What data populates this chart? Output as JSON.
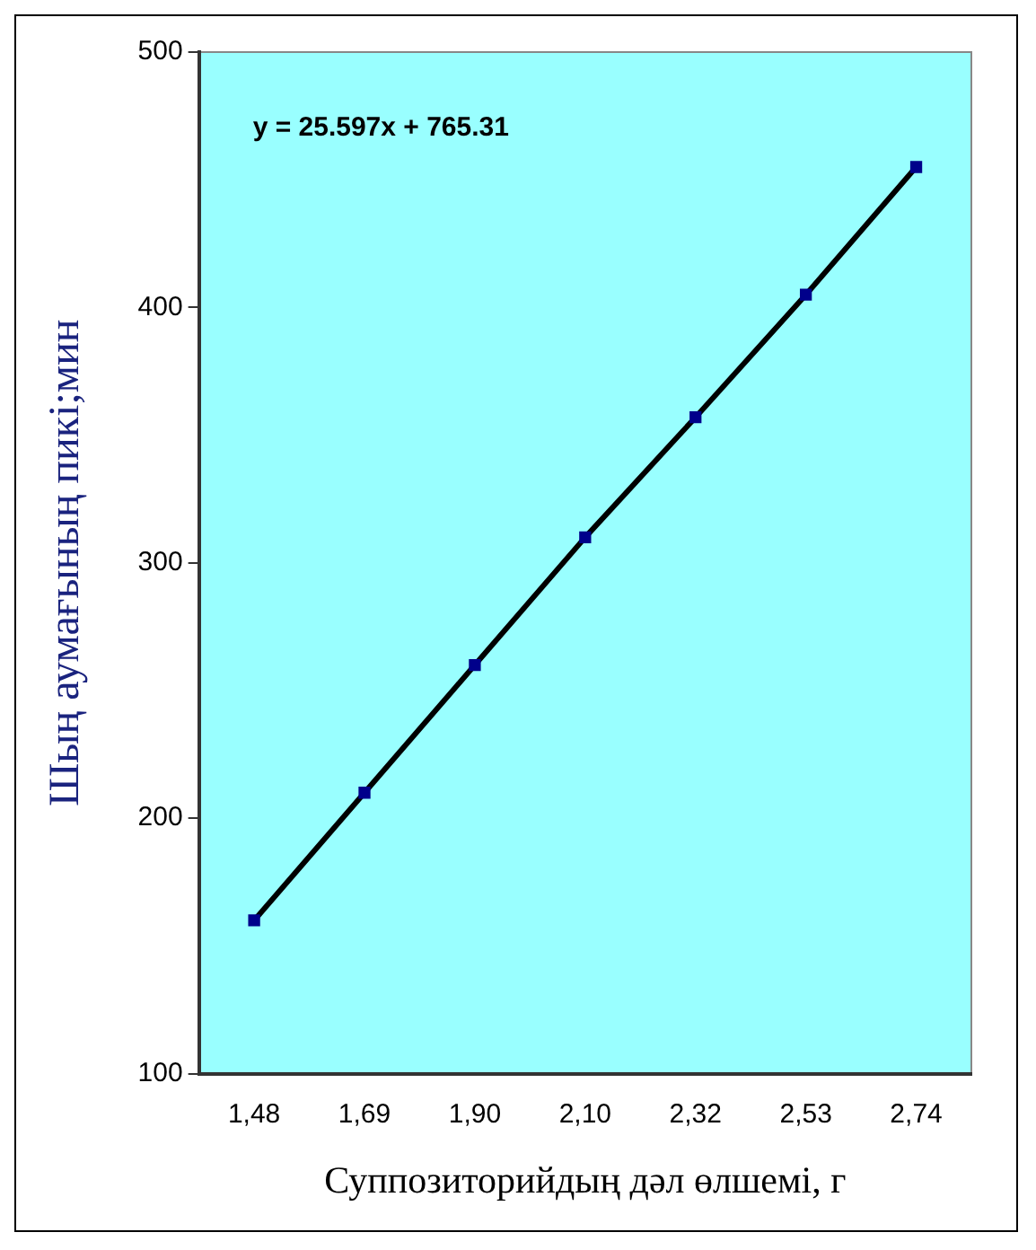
{
  "chart_data": {
    "type": "scatter",
    "xlabel": "Суппозиторийдың дәл өлшемі, г",
    "ylabel": "Шың аумағының пикі;мин",
    "categories": [
      "1,48",
      "1,69",
      "1,90",
      "2,10",
      "2,32",
      "2,53",
      "2,74"
    ],
    "series": [
      {
        "type": "scatter",
        "color": "#00008b",
        "values": [
          160,
          210,
          260,
          310,
          357,
          405,
          455
        ]
      },
      {
        "type": "line",
        "color": "#000000",
        "marker": "none",
        "values": [
          160,
          210,
          260,
          310,
          357,
          405,
          455
        ]
      }
    ],
    "marker": "square",
    "ylim": [
      100,
      500
    ],
    "yticks": [
      100,
      200,
      300,
      400,
      500
    ],
    "grid": false,
    "legend": false,
    "annotations": [
      "y = 25.597x + 765.31"
    ]
  }
}
